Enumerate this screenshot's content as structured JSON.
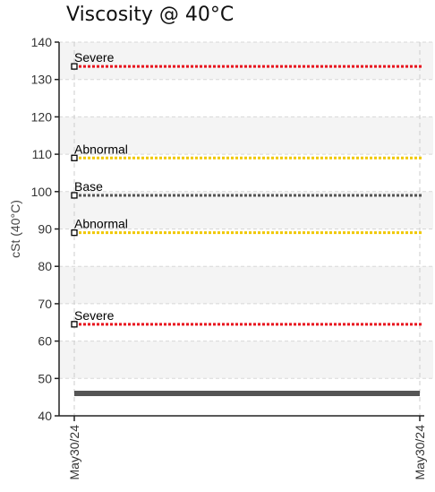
{
  "chart_data": {
    "type": "line",
    "title": "Viscosity @ 40°C",
    "ylabel": "cSt (40°C)",
    "xlabel": "",
    "ylim": [
      40,
      140
    ],
    "yticks": [
      40,
      50,
      60,
      70,
      80,
      90,
      100,
      110,
      120,
      130,
      140
    ],
    "x": [
      "May30/24",
      "May30/24"
    ],
    "grid": true,
    "reference_lines": [
      {
        "label": "Severe",
        "value": 133.5,
        "color": "#e8141e",
        "style": "dotted"
      },
      {
        "label": "Abnormal",
        "value": 109,
        "color": "#f0c800",
        "style": "dotted"
      },
      {
        "label": "Base",
        "value": 99,
        "color": "#555555",
        "style": "dotted"
      },
      {
        "label": "Abnormal",
        "value": 89,
        "color": "#f0c800",
        "style": "dotted"
      },
      {
        "label": "Severe",
        "value": 64.5,
        "color": "#e8141e",
        "style": "dotted"
      }
    ],
    "series": [
      {
        "values": [
          46,
          46
        ],
        "color": "#555555"
      }
    ]
  }
}
